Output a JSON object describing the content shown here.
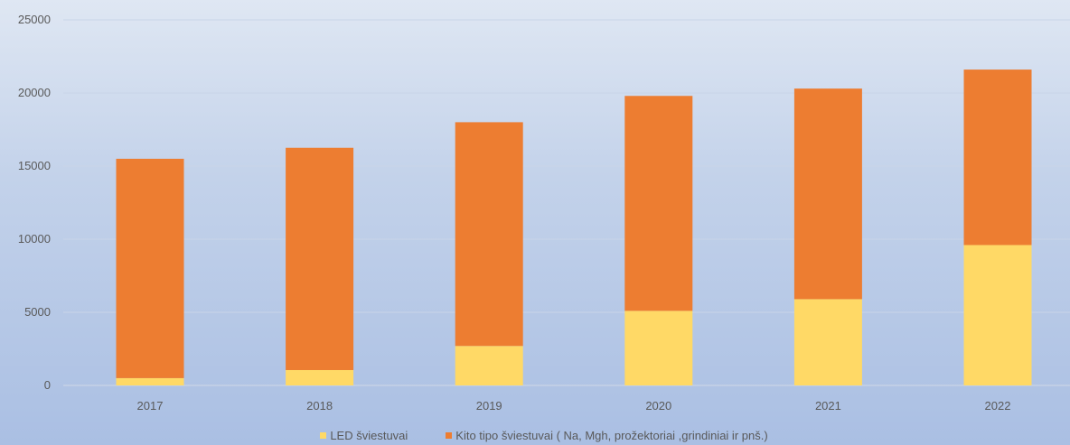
{
  "chart_data": {
    "type": "bar",
    "stacked": true,
    "categories": [
      "2017",
      "2018",
      "2019",
      "2020",
      "2021",
      "2022"
    ],
    "series": [
      {
        "name": "LED šviestuvai",
        "color": "#ffd966",
        "values": [
          500,
          1050,
          2700,
          5100,
          5900,
          9600
        ]
      },
      {
        "name": "Kito tipo šviestuvai ( Na, Mgh, prožektoriai ,grindiniai ir pnš.)",
        "color": "#ed7d31",
        "values": [
          15000,
          15200,
          15300,
          14700,
          14400,
          12000
        ]
      }
    ],
    "y_ticks": [
      "0",
      "5000",
      "10000",
      "15000",
      "20000",
      "25000"
    ],
    "ylim": [
      0,
      25000
    ],
    "grid": true,
    "legend_position": "bottom",
    "title": "",
    "xlabel": "",
    "ylabel": ""
  }
}
